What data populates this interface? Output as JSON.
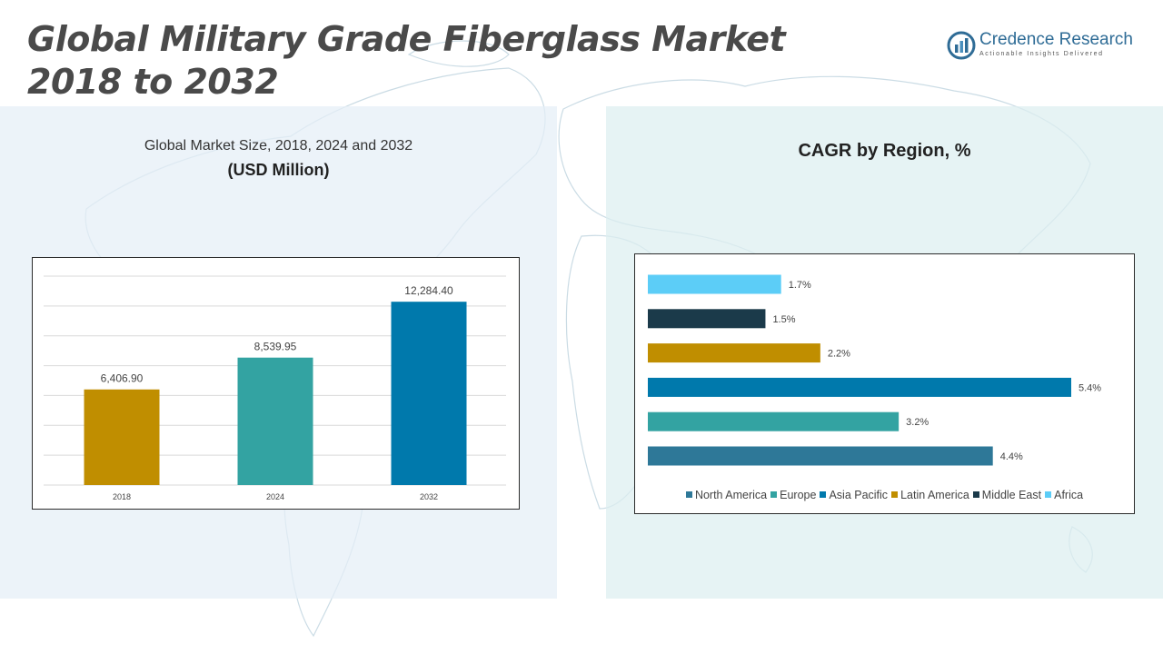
{
  "title_line1": "Global Military Grade Fiberglass Market",
  "title_line2": "2018 to 2032",
  "logo": {
    "name": "Credence Research",
    "tagline": "Actionable Insights Delivered"
  },
  "left_panel": {
    "subtitle": "Global Market Size, 2018, 2024 and 2032",
    "unit": "(USD Million)"
  },
  "right_panel": {
    "title": "CAGR by Region, %"
  },
  "chart_data": [
    {
      "type": "bar",
      "title": "Global Market Size, 2018, 2024 and 2032 (USD Million)",
      "categories": [
        "2018",
        "2024",
        "2032"
      ],
      "values": [
        6406.9,
        8539.95,
        12284.4
      ],
      "value_labels": [
        "6,406.90",
        "8,539.95",
        "12,284.40"
      ],
      "colors": [
        "#c08e00",
        "#33a3a2",
        "#0079ac"
      ],
      "ylim": [
        0,
        14000
      ],
      "grid": true
    },
    {
      "type": "bar",
      "orientation": "horizontal",
      "title": "CAGR by Region, %",
      "series": [
        {
          "name": "North America",
          "value": 4.4,
          "label": "4.4%",
          "color": "#2e7898"
        },
        {
          "name": "Europe",
          "value": 3.2,
          "label": "3.2%",
          "color": "#33a3a2"
        },
        {
          "name": "Asia Pacific",
          "value": 5.4,
          "label": "5.4%",
          "color": "#0079ac"
        },
        {
          "name": "Latin America",
          "value": 2.2,
          "label": "2.2%",
          "color": "#c08e00"
        },
        {
          "name": "Middle East",
          "value": 1.5,
          "label": "1.5%",
          "color": "#1b3a4a"
        },
        {
          "name": "Africa",
          "value": 1.7,
          "label": "1.7%",
          "color": "#5ccdf7"
        }
      ],
      "xlim": [
        0,
        5.4
      ],
      "legend_position": "bottom"
    }
  ]
}
